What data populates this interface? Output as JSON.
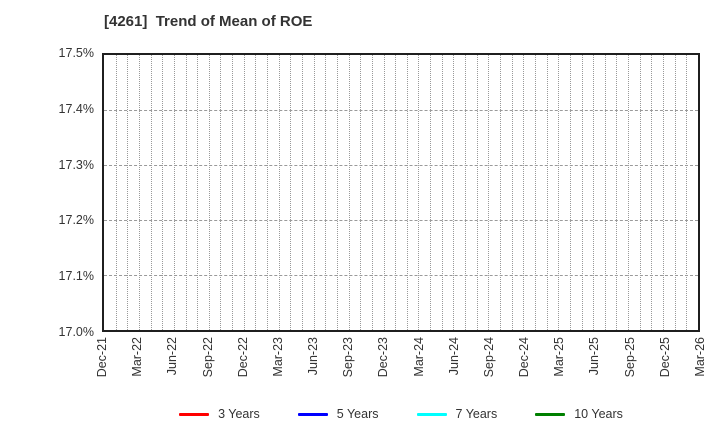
{
  "title": "[4261]  Trend of Mean of ROE",
  "chart_data": {
    "type": "line",
    "title": "[4261]  Trend of Mean of ROE",
    "x_tick_labels": [
      "Dec-21",
      "Mar-22",
      "Jun-22",
      "Sep-22",
      "Dec-22",
      "Mar-23",
      "Jun-23",
      "Sep-23",
      "Dec-23",
      "Mar-24",
      "Jun-24",
      "Sep-24",
      "Dec-24",
      "Mar-25",
      "Jun-25",
      "Sep-25",
      "Dec-25",
      "Mar-26"
    ],
    "x_tick_interval_months": 3,
    "x_total_months": 51,
    "ylim": [
      17.0,
      17.5
    ],
    "yticks": [
      {
        "value": 17.0,
        "label": "17.0%"
      },
      {
        "value": 17.1,
        "label": "17.1%"
      },
      {
        "value": 17.2,
        "label": "17.2%"
      },
      {
        "value": 17.3,
        "label": "17.3%"
      },
      {
        "value": 17.4,
        "label": "17.4%"
      },
      {
        "value": 17.5,
        "label": "17.5%"
      }
    ],
    "grid": {
      "horizontal": "dashed",
      "vertical": "dotted",
      "on": true
    },
    "legend_position": "bottom",
    "series": [
      {
        "name": "3 Years",
        "color": "#ff0000",
        "values": []
      },
      {
        "name": "5 Years",
        "color": "#0000ff",
        "values": []
      },
      {
        "name": "7 Years",
        "color": "#00ffff",
        "values": []
      },
      {
        "name": "10 Years",
        "color": "#008000",
        "values": []
      }
    ]
  },
  "colors": {
    "background": "#ffffff",
    "plot_border": "#1f1f1f",
    "text": "#333333",
    "gridline": "#999999"
  }
}
